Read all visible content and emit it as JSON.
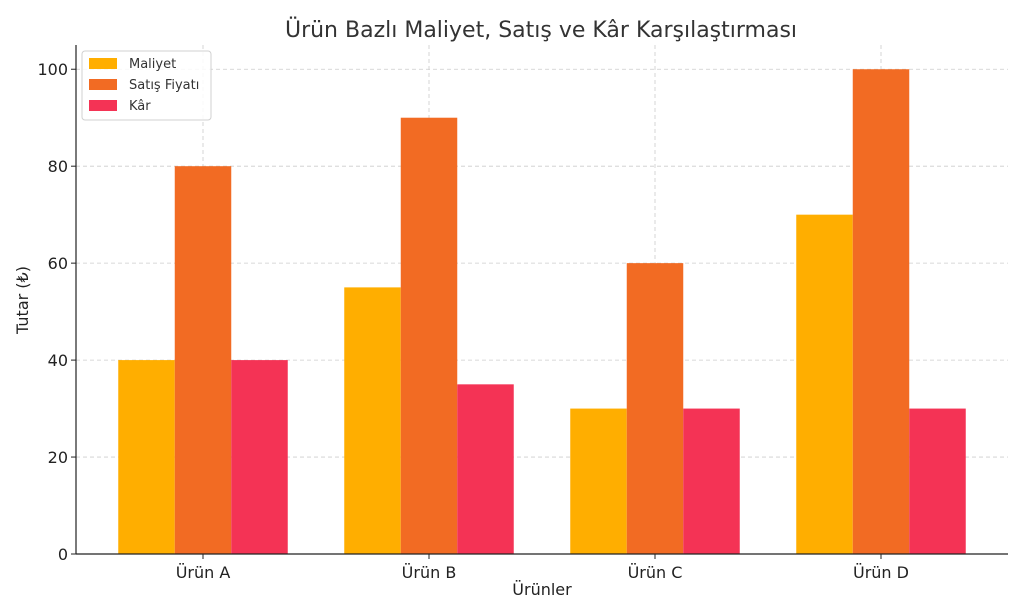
{
  "chart_data": {
    "type": "bar",
    "title": "Ürün Bazlı Maliyet, Satış ve Kâr Karşılaştırması",
    "xlabel": "Ürünler",
    "ylabel": "Tutar (₺)",
    "categories": [
      "Ürün A",
      "Ürün B",
      "Ürün C",
      "Ürün D"
    ],
    "series": [
      {
        "name": "Maliyet",
        "color": "#FFAE00",
        "values": [
          40,
          55,
          30,
          70
        ]
      },
      {
        "name": "Satış Fiyatı",
        "color": "#F26B23",
        "values": [
          80,
          90,
          60,
          100
        ]
      },
      {
        "name": "Kâr",
        "color": "#F43355",
        "values": [
          40,
          35,
          30,
          30
        ]
      }
    ],
    "ylim": [
      0,
      105
    ],
    "yticks": [
      0,
      20,
      40,
      60,
      80,
      100
    ],
    "grid": true,
    "legend_position": "top-left"
  }
}
